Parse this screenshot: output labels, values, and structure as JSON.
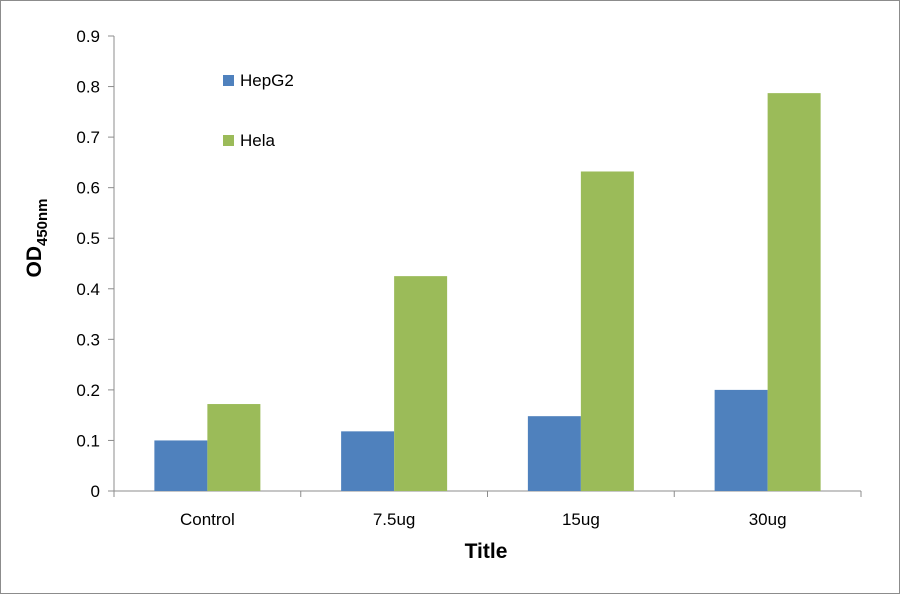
{
  "chart_data": {
    "type": "bar",
    "categories": [
      "Control",
      "7.5ug",
      "15ug",
      "30ug"
    ],
    "series": [
      {
        "name": "HepG2",
        "values": [
          0.1,
          0.118,
          0.148,
          0.2
        ],
        "color": "#4f81bd"
      },
      {
        "name": "Hela",
        "values": [
          0.172,
          0.425,
          0.632,
          0.787
        ],
        "color": "#9bbb59"
      }
    ],
    "yticks": [
      "0",
      "0.1",
      "0.2",
      "0.3",
      "0.4",
      "0.5",
      "0.6",
      "0.7",
      "0.8",
      "0.9"
    ],
    "ylim": [
      0,
      0.9
    ],
    "xlabel": "Title",
    "ylabel": {
      "main": "OD",
      "subscript": "450nm"
    },
    "legend_position": "top-left",
    "grid": false
  }
}
